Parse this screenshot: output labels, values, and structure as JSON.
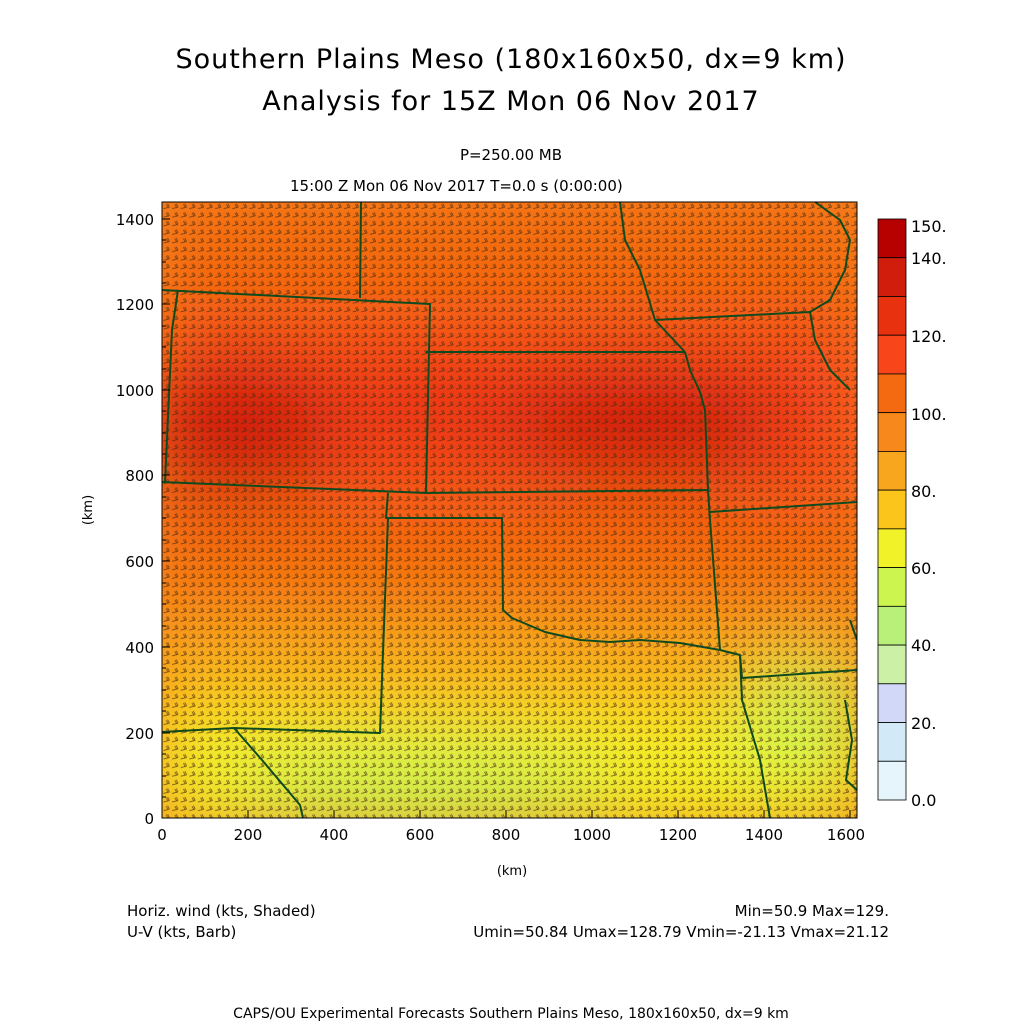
{
  "title_line1": "Southern Plains Meso (180x160x50, dx=9 km)",
  "title_line2": "Analysis for 15Z Mon 06 Nov 2017",
  "level_label": "P=250.00 MB",
  "time_label": "15:00 Z Mon 06 Nov 2017    T=0.0 s (0:00:00)",
  "axes": {
    "x_ticks": [
      "0",
      "200",
      "400",
      "600",
      "800",
      "1000",
      "1200",
      "1400",
      "1600"
    ],
    "y_ticks": [
      "0",
      "200",
      "400",
      "600",
      "800",
      "1000",
      "1200",
      "1400"
    ],
    "x_label": "(km)",
    "y_label": "(km)"
  },
  "colorbar": {
    "labels": [
      "150.",
      "140.",
      "120.",
      "100.",
      "80.",
      "60.",
      "40.",
      "20.",
      "0.0"
    ],
    "colors": [
      "#b70000",
      "#d11e0c",
      "#e8320f",
      "#f8461a",
      "#f46a10",
      "#f6881c",
      "#f8a61e",
      "#fcc51c",
      "#f2f228",
      "#ccf550",
      "#b9f07a",
      "#ccf0a6",
      "#d2d8f8",
      "#d2eaf8",
      "#e6f4fb"
    ]
  },
  "legend": {
    "left_line1": "Horiz. wind (kts, Shaded)",
    "left_line2": "U-V (kts, Barb)",
    "right_line1": "Min=50.9 Max=129.",
    "right_line2": "Umin=50.84 Umax=128.79 Vmin=-21.13 Vmax=21.12"
  },
  "footer": "CAPS/OU Experimental Forecasts  Southern Plains Meso, 180x160x50, dx=9 km"
}
